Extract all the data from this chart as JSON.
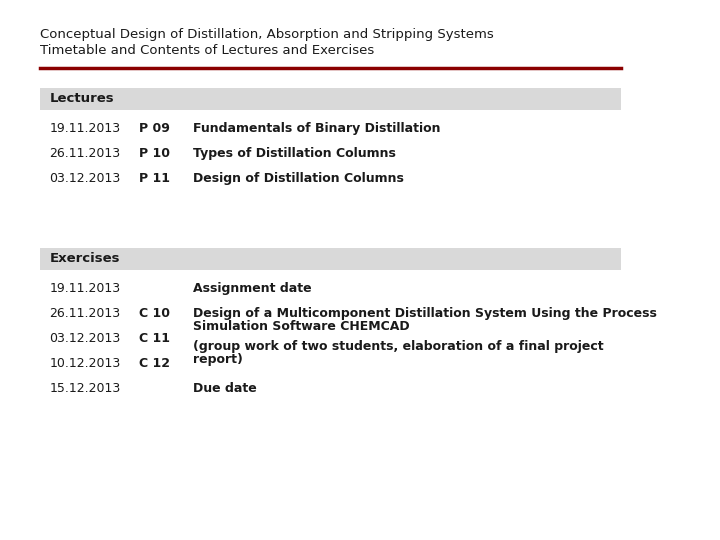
{
  "title_line1": "Conceptual Design of Distillation, Absorption and Stripping Systems",
  "title_line2": "Timetable and Contents of Lectures and Exercises",
  "title_color": "#1a1a1a",
  "separator_color": "#8b0000",
  "bg_color": "#ffffff",
  "section_bg": "#d9d9d9",
  "lectures_label": "Lectures",
  "exercises_label": "Exercises",
  "lectures": [
    {
      "date": "19.11.2013",
      "code": "P 09",
      "desc": "Fundamentals of Binary Distillation"
    },
    {
      "date": "26.11.2013",
      "code": "P 10",
      "desc": "Types of Distillation Columns"
    },
    {
      "date": "03.12.2013",
      "code": "P 11",
      "desc": "Design of Distillation Columns"
    }
  ],
  "exercises": [
    {
      "date": "19.11.2013",
      "code": "",
      "desc": "Assignment date"
    },
    {
      "date": "26.11.2013",
      "code": "C 10",
      "desc": ""
    },
    {
      "date": "03.12.2013",
      "code": "C 11",
      "desc": ""
    },
    {
      "date": "10.12.2013",
      "code": "C 12",
      "desc": ""
    },
    {
      "date": "15.12.2013",
      "code": "",
      "desc": "Due date"
    }
  ],
  "exercise_long_text_line1": "Design of a Multicomponent Distillation System Using the Process",
  "exercise_long_text_line2": "Simulation Software CHEMCAD",
  "exercise_long_text_line3": "(group work of two students, elaboration of a final project",
  "exercise_long_text_line4": "report)"
}
